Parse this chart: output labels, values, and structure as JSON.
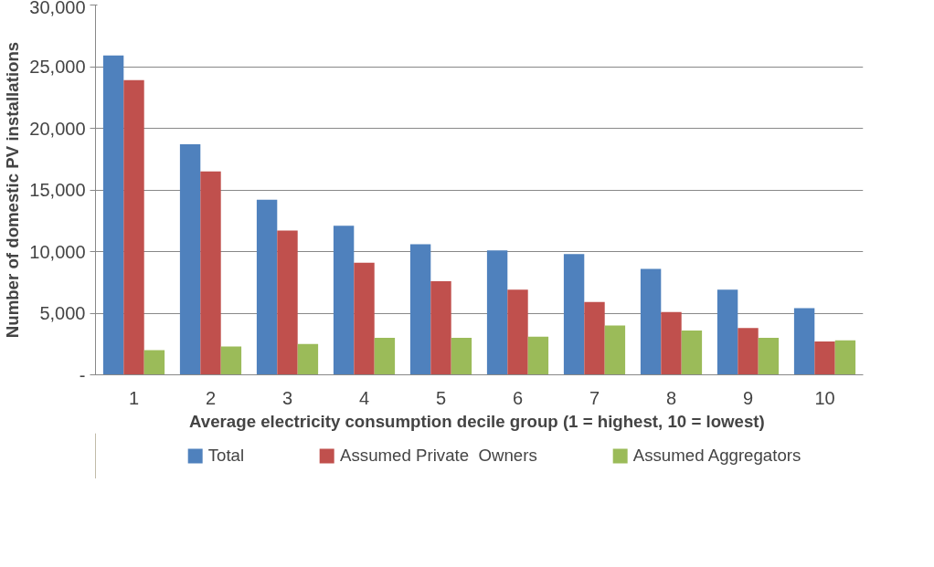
{
  "chart_data": {
    "type": "bar",
    "xlabel": "Average electricity consumption  decile group (1 = highest, 10 = lowest)",
    "ylabel": "Number of domestic PV installations",
    "categories": [
      "1",
      "2",
      "3",
      "4",
      "5",
      "6",
      "7",
      "8",
      "9",
      "10"
    ],
    "series": [
      {
        "name": "Total",
        "color": "#4f81bd",
        "values": [
          25900,
          18700,
          14200,
          12100,
          10600,
          10100,
          9800,
          8600,
          6900,
          5400
        ]
      },
      {
        "name": "Assumed Private  Owners",
        "color": "#c0504d",
        "values": [
          23900,
          16500,
          11700,
          9100,
          7600,
          6900,
          5900,
          5100,
          3800,
          2700
        ]
      },
      {
        "name": "Assumed Aggregators",
        "color": "#9bbb59",
        "values": [
          2000,
          2300,
          2500,
          3000,
          3000,
          3100,
          4000,
          3600,
          3000,
          2800
        ]
      }
    ],
    "ylim": [
      0,
      30000
    ],
    "yticks": [
      {
        "value": 0,
        "label": "-"
      },
      {
        "value": 5000,
        "label": "5,000"
      },
      {
        "value": 10000,
        "label": "10,000"
      },
      {
        "value": 15000,
        "label": "15,000"
      },
      {
        "value": 20000,
        "label": "20,000"
      },
      {
        "value": 25000,
        "label": "25,000"
      },
      {
        "value": 30000,
        "label": "30,000"
      }
    ],
    "grid": "y",
    "legend": "bottom"
  }
}
